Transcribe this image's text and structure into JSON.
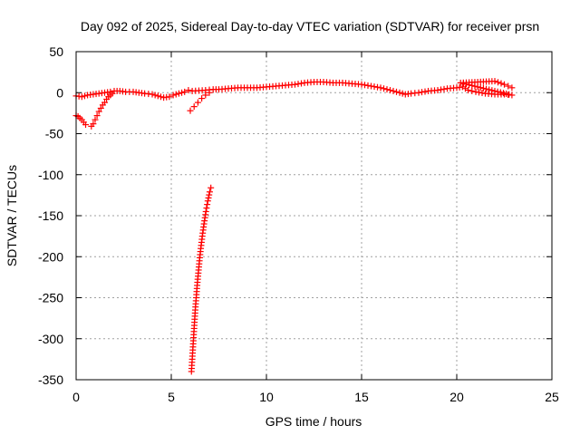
{
  "chart_data": {
    "type": "scatter",
    "title": "Day 092 of 2025, Sidereal Day-to-day VTEC variation (SDTVAR) for receiver prsn",
    "xlabel": "GPS time / hours",
    "ylabel": "SDTVAR / TECUs",
    "xlim": [
      0,
      25
    ],
    "ylim": [
      -350,
      50
    ],
    "xticks": [
      "0",
      "5",
      "10",
      "15",
      "20",
      "25"
    ],
    "yticks": [
      "50",
      "0",
      "-50",
      "-100",
      "-150",
      "-200",
      "-250",
      "-300",
      "-350"
    ],
    "grid": true,
    "marker": "plus",
    "color": "#ff0000",
    "series": [
      {
        "points": [
          [
            0.0,
            -4
          ],
          [
            0.3,
            -5
          ],
          [
            0.6,
            -3
          ],
          [
            0.9,
            -2
          ],
          [
            1.2,
            -1
          ],
          [
            1.5,
            0
          ],
          [
            1.8,
            1
          ],
          [
            2.0,
            2
          ],
          [
            2.3,
            2
          ],
          [
            2.6,
            1
          ],
          [
            3.0,
            1
          ],
          [
            3.3,
            0
          ],
          [
            3.6,
            -1
          ],
          [
            4.0,
            -2
          ],
          [
            4.3,
            -4
          ],
          [
            4.6,
            -6
          ],
          [
            4.9,
            -5
          ],
          [
            5.1,
            -3
          ],
          [
            5.4,
            -1
          ],
          [
            5.7,
            1
          ],
          [
            5.9,
            3
          ],
          [
            6.1,
            2
          ],
          [
            6.8,
            3
          ],
          [
            7.2,
            4
          ],
          [
            7.5,
            4
          ],
          [
            8.0,
            5
          ],
          [
            8.5,
            6
          ],
          [
            9.0,
            6
          ],
          [
            9.5,
            6
          ],
          [
            10.0,
            7
          ],
          [
            10.5,
            8
          ],
          [
            11.0,
            9
          ],
          [
            11.5,
            10
          ],
          [
            12.0,
            12
          ],
          [
            12.5,
            13
          ],
          [
            13.0,
            13
          ],
          [
            13.5,
            12
          ],
          [
            14.0,
            12
          ],
          [
            14.5,
            11
          ],
          [
            15.0,
            10
          ],
          [
            15.5,
            8
          ],
          [
            16.0,
            6
          ],
          [
            16.5,
            3
          ],
          [
            17.0,
            0
          ],
          [
            17.3,
            -2
          ],
          [
            17.6,
            -1
          ],
          [
            18.0,
            0
          ],
          [
            18.5,
            2
          ],
          [
            19.0,
            3
          ],
          [
            19.5,
            5
          ],
          [
            20.0,
            6
          ],
          [
            20.3,
            7
          ],
          [
            20.6,
            3
          ],
          [
            21.0,
            1
          ],
          [
            21.5,
            -1
          ],
          [
            22.0,
            -2
          ],
          [
            22.5,
            -2
          ],
          [
            22.9,
            -3
          ],
          [
            20.2,
            12
          ],
          [
            22.0,
            14
          ],
          [
            22.5,
            10
          ],
          [
            22.9,
            6
          ]
        ]
      },
      {
        "points": [
          [
            0.0,
            -28
          ],
          [
            0.1,
            -29
          ],
          [
            0.2,
            -31
          ],
          [
            0.3,
            -33
          ],
          [
            0.4,
            -36
          ],
          [
            0.5,
            -39
          ]
        ]
      },
      {
        "points": [
          [
            0.8,
            -41
          ],
          [
            0.9,
            -38
          ],
          [
            1.0,
            -33
          ],
          [
            1.1,
            -28
          ],
          [
            1.2,
            -23
          ],
          [
            1.3,
            -19
          ],
          [
            1.4,
            -15
          ],
          [
            1.5,
            -12
          ],
          [
            1.6,
            -8
          ],
          [
            1.7,
            -5
          ],
          [
            1.8,
            -3
          ],
          [
            1.9,
            -1
          ]
        ]
      },
      {
        "points": [
          [
            6.0,
            -22
          ],
          [
            6.2,
            -17
          ],
          [
            6.4,
            -12
          ],
          [
            6.6,
            -7
          ],
          [
            6.8,
            -3
          ],
          [
            7.0,
            0
          ]
        ]
      },
      {
        "points": [
          [
            6.06,
            -340
          ],
          [
            6.1,
            -325
          ],
          [
            6.14,
            -310
          ],
          [
            6.18,
            -295
          ],
          [
            6.22,
            -280
          ],
          [
            6.26,
            -265
          ],
          [
            6.31,
            -250
          ],
          [
            6.36,
            -235
          ],
          [
            6.42,
            -220
          ],
          [
            6.48,
            -205
          ],
          [
            6.55,
            -190
          ],
          [
            6.63,
            -175
          ],
          [
            6.72,
            -160
          ],
          [
            6.82,
            -145
          ],
          [
            6.92,
            -132
          ],
          [
            7.02,
            -121
          ],
          [
            7.08,
            -116
          ]
        ]
      }
    ]
  }
}
